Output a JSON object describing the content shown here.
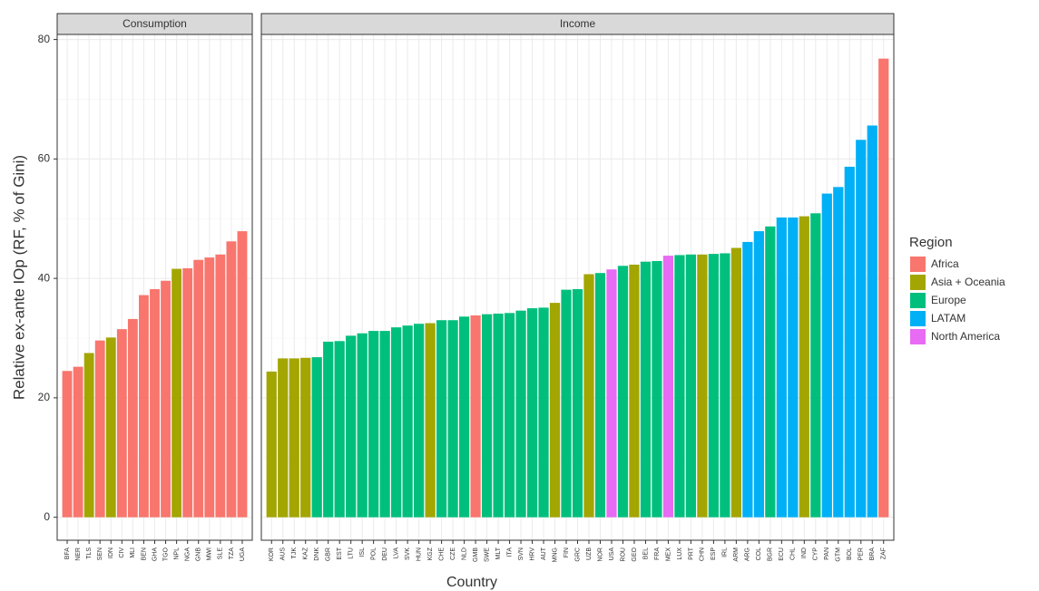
{
  "chart_data": {
    "type": "bar",
    "y_label": "Relative ex-ante IOp (RF, % of Gini)",
    "x_label": "Country",
    "legend_title": "Region",
    "legend": [
      {
        "name": "Africa",
        "color": "#F8766D"
      },
      {
        "name": "Asia + Oceania",
        "color": "#A3A500"
      },
      {
        "name": "Europe",
        "color": "#00BF7D"
      },
      {
        "name": "LATAM",
        "color": "#00B0F6"
      },
      {
        "name": "North America",
        "color": "#E76BF3"
      }
    ],
    "ylim": [
      -3.85,
      80.85
    ],
    "yticks": [
      0,
      20,
      40,
      60,
      80
    ],
    "grid": true,
    "facets": [
      {
        "title": "Consumption",
        "categories": [
          "BFA",
          "NER",
          "TLS",
          "SEN",
          "IDN",
          "CIV",
          "MLI",
          "BEN",
          "GHA",
          "TGO",
          "NPL",
          "NGA",
          "GNB",
          "MWI",
          "SLE",
          "TZA",
          "UGA"
        ],
        "values": [
          24.5,
          25.2,
          27.5,
          29.6,
          30.1,
          31.5,
          33.2,
          37.2,
          38.2,
          39.6,
          41.6,
          41.7,
          43.1,
          43.5,
          44.0,
          46.2,
          47.9
        ],
        "regions": [
          "Africa",
          "Africa",
          "Asia + Oceania",
          "Africa",
          "Asia + Oceania",
          "Africa",
          "Africa",
          "Africa",
          "Africa",
          "Africa",
          "Asia + Oceania",
          "Africa",
          "Africa",
          "Africa",
          "Africa",
          "Africa",
          "Africa"
        ]
      },
      {
        "title": "Income",
        "categories": [
          "KOR",
          "AUS",
          "TJK",
          "KAZ",
          "DNK",
          "GBR",
          "EST",
          "LTU",
          "ISL",
          "POL",
          "DEU",
          "LVA",
          "SVK",
          "HUN",
          "KGZ",
          "CHE",
          "CZE",
          "NLD",
          "GMB",
          "SWE",
          "MLT",
          "ITA",
          "SVN",
          "HRV",
          "AUT",
          "MNG",
          "FIN",
          "GRC",
          "UZB",
          "NOR",
          "USA",
          "ROU",
          "GEO",
          "BEL",
          "FRA",
          "MEX",
          "LUX",
          "PRT",
          "CHN",
          "ESP",
          "IRL",
          "ARM",
          "ARG",
          "COL",
          "BGR",
          "ECU",
          "CHL",
          "IND",
          "CYP",
          "PAN",
          "GTM",
          "BOL",
          "PER",
          "BRA",
          "ZAF"
        ],
        "values": [
          24.4,
          26.6,
          26.6,
          26.7,
          26.8,
          29.4,
          29.5,
          30.4,
          30.8,
          31.2,
          31.2,
          31.8,
          32.1,
          32.4,
          32.5,
          33.0,
          33.0,
          33.6,
          33.8,
          34.0,
          34.1,
          34.2,
          34.6,
          35.0,
          35.1,
          35.9,
          38.1,
          38.2,
          40.7,
          40.9,
          41.5,
          42.1,
          42.3,
          42.8,
          42.9,
          43.8,
          43.9,
          44.0,
          44.0,
          44.1,
          44.2,
          45.1,
          46.1,
          47.9,
          48.7,
          50.2,
          50.2,
          50.4,
          50.9,
          54.2,
          55.3,
          58.7,
          63.2,
          65.6,
          76.8
        ],
        "regions": [
          "Asia + Oceania",
          "Asia + Oceania",
          "Asia + Oceania",
          "Asia + Oceania",
          "Europe",
          "Europe",
          "Europe",
          "Europe",
          "Europe",
          "Europe",
          "Europe",
          "Europe",
          "Europe",
          "Europe",
          "Asia + Oceania",
          "Europe",
          "Europe",
          "Europe",
          "Africa",
          "Europe",
          "Europe",
          "Europe",
          "Europe",
          "Europe",
          "Europe",
          "Asia + Oceania",
          "Europe",
          "Europe",
          "Asia + Oceania",
          "Europe",
          "North America",
          "Europe",
          "Asia + Oceania",
          "Europe",
          "Europe",
          "North America",
          "Europe",
          "Europe",
          "Asia + Oceania",
          "Europe",
          "Europe",
          "Asia + Oceania",
          "LATAM",
          "LATAM",
          "Europe",
          "LATAM",
          "LATAM",
          "Asia + Oceania",
          "Europe",
          "LATAM",
          "LATAM",
          "LATAM",
          "LATAM",
          "LATAM",
          "Africa"
        ]
      }
    ]
  }
}
